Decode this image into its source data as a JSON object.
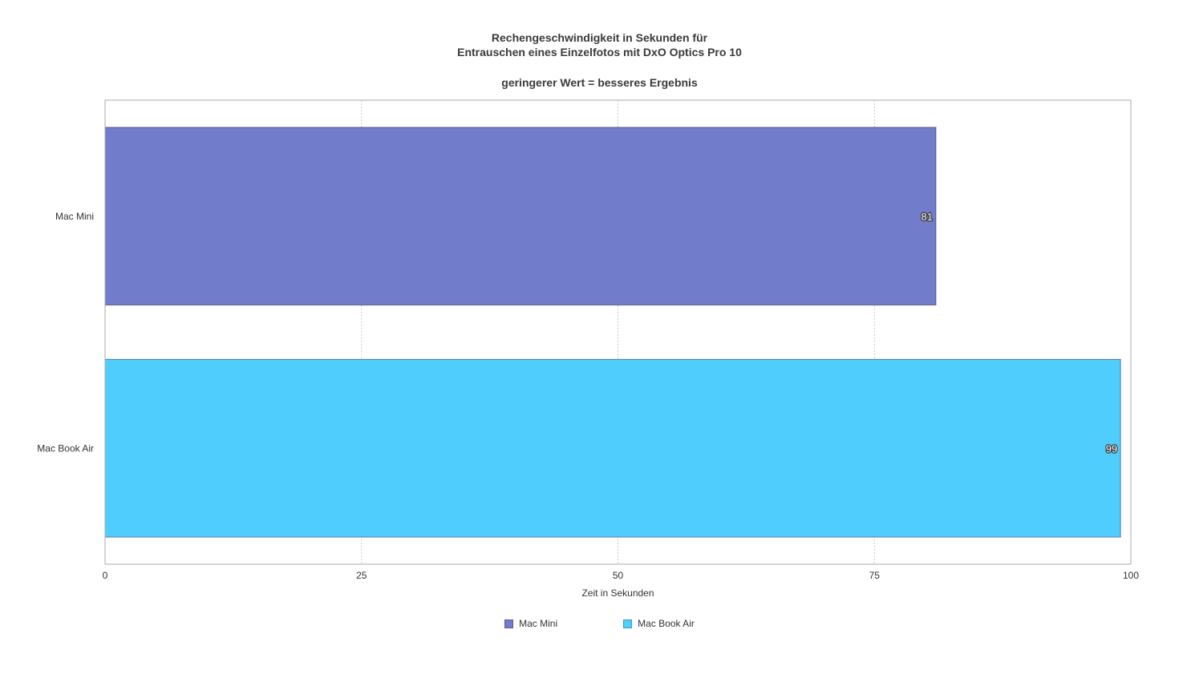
{
  "chart_data": {
    "type": "bar",
    "orientation": "horizontal",
    "title_lines": [
      "Rechengeschwindigkeit in Sekunden für",
      "Entrauschen eines Einzelfotos mit DxO Optics Pro 10"
    ],
    "subtitle": "geringerer Wert = besseres Ergebnis",
    "categories": [
      "Mac Mini",
      "Mac Book Air"
    ],
    "series": [
      {
        "name": "Mac Mini",
        "values": [
          81,
          null
        ],
        "color": "#717ccb"
      },
      {
        "name": "Mac Book Air",
        "values": [
          null,
          99
        ],
        "color": "#4fcdfd"
      }
    ],
    "xlabel": "Zeit in Sekunden",
    "ylabel": "",
    "xlim": [
      0,
      100
    ],
    "xticks": [
      "0",
      "25",
      "50",
      "75",
      "100"
    ],
    "grid": true,
    "legend_position": "bottom-center"
  }
}
